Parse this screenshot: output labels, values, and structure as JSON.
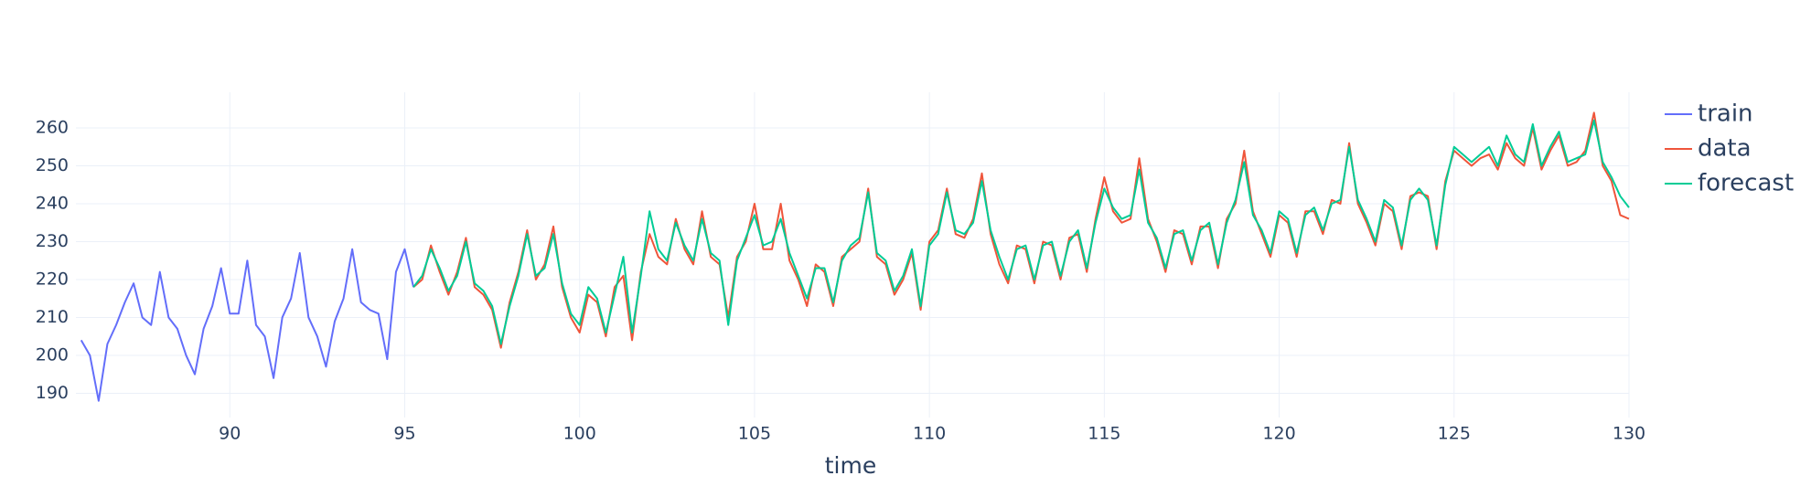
{
  "chart_data": {
    "type": "line",
    "x_label": "time",
    "xlim": [
      85.6,
      130
    ],
    "xticks": [
      90,
      95,
      100,
      105,
      110,
      115,
      120,
      125,
      130
    ],
    "ylim": [
      183.6,
      269.4
    ],
    "yticks": [
      190,
      200,
      210,
      220,
      230,
      240,
      250,
      260
    ],
    "grid": true,
    "legend": "right",
    "series": [
      {
        "name": "train",
        "color": "#636efa",
        "x": [
          85.75,
          86,
          86.25,
          86.5,
          86.75,
          87,
          87.25,
          87.5,
          87.75,
          88,
          88.25,
          88.5,
          88.75,
          89,
          89.25,
          89.5,
          89.75,
          90,
          90.25,
          90.5,
          90.75,
          91,
          91.25,
          91.5,
          91.75,
          92,
          92.25,
          92.5,
          92.75,
          93,
          93.25,
          93.5,
          93.75,
          94,
          94.25,
          94.5,
          94.75,
          95,
          95.25
        ],
        "values": [
          204,
          200,
          188,
          203,
          208,
          214,
          219,
          210,
          208,
          222,
          210,
          207,
          200,
          195,
          207,
          213,
          223,
          211,
          211,
          225,
          208,
          205,
          194,
          210,
          215,
          227,
          210,
          205,
          197,
          209,
          215,
          228,
          214,
          212,
          211,
          199,
          222,
          228,
          218
        ]
      },
      {
        "name": "data",
        "color": "#ef553b",
        "x": [
          95.25,
          95.5,
          95.75,
          96,
          96.25,
          96.5,
          96.75,
          97,
          97.25,
          97.5,
          97.75,
          98,
          98.25,
          98.5,
          98.75,
          99,
          99.25,
          99.5,
          99.75,
          100,
          100.25,
          100.5,
          100.75,
          101,
          101.25,
          101.5,
          101.75,
          102,
          102.25,
          102.5,
          102.75,
          103,
          103.25,
          103.5,
          103.75,
          104,
          104.25,
          104.5,
          104.75,
          105,
          105.25,
          105.5,
          105.75,
          106,
          106.25,
          106.5,
          106.75,
          107,
          107.25,
          107.5,
          107.75,
          108,
          108.25,
          108.5,
          108.75,
          109,
          109.25,
          109.5,
          109.75,
          110,
          110.25,
          110.5,
          110.75,
          111,
          111.25,
          111.5,
          111.75,
          112,
          112.25,
          112.5,
          112.75,
          113,
          113.25,
          113.5,
          113.75,
          114,
          114.25,
          114.5,
          114.75,
          115,
          115.25,
          115.5,
          115.75,
          116,
          116.25,
          116.5,
          116.75,
          117,
          117.25,
          117.5,
          117.75,
          118,
          118.25,
          118.5,
          118.75,
          119,
          119.25,
          119.5,
          119.75,
          120,
          120.25,
          120.5,
          120.75,
          121,
          121.25,
          121.5,
          121.75,
          122,
          122.25,
          122.5,
          122.75,
          123,
          123.25,
          123.5,
          123.75,
          124,
          124.25,
          124.5,
          124.75,
          125,
          125.25,
          125.5,
          125.75,
          126,
          126.25,
          126.5,
          126.75,
          127,
          127.25,
          127.5,
          127.75,
          128,
          128.25,
          128.5,
          128.75,
          129,
          129.25,
          129.5,
          129.75,
          130
        ],
        "values": [
          218,
          220,
          229,
          222,
          216,
          222,
          231,
          218,
          216,
          212,
          202,
          214,
          222,
          233,
          220,
          224,
          234,
          218,
          210,
          206,
          216,
          214,
          205,
          218,
          221,
          204,
          222,
          232,
          226,
          224,
          236,
          228,
          224,
          238,
          226,
          224,
          210,
          226,
          230,
          240,
          228,
          228,
          240,
          225,
          220,
          213,
          224,
          222,
          213,
          226,
          228,
          230,
          244,
          226,
          224,
          216,
          220,
          227,
          212,
          230,
          233,
          244,
          232,
          231,
          236,
          248,
          232,
          224,
          219,
          229,
          228,
          219,
          230,
          229,
          220,
          231,
          232,
          222,
          236,
          247,
          238,
          235,
          236,
          252,
          236,
          230,
          222,
          233,
          232,
          224,
          234,
          234,
          223,
          236,
          240,
          254,
          238,
          232,
          226,
          237,
          235,
          226,
          238,
          238,
          232,
          241,
          240,
          256,
          240,
          235,
          229,
          240,
          238,
          228,
          242,
          243,
          242,
          228,
          246,
          254,
          252,
          250,
          252,
          253,
          249,
          256,
          252,
          250,
          260,
          249,
          254,
          258,
          250,
          251,
          254,
          264,
          250,
          246,
          237,
          236
        ]
      },
      {
        "name": "forecast",
        "color": "#00cc96",
        "x": [
          95.25,
          95.5,
          95.75,
          96,
          96.25,
          96.5,
          96.75,
          97,
          97.25,
          97.5,
          97.75,
          98,
          98.25,
          98.5,
          98.75,
          99,
          99.25,
          99.5,
          99.75,
          100,
          100.25,
          100.5,
          100.75,
          101,
          101.25,
          101.5,
          101.75,
          102,
          102.25,
          102.5,
          102.75,
          103,
          103.25,
          103.5,
          103.75,
          104,
          104.25,
          104.5,
          104.75,
          105,
          105.25,
          105.5,
          105.75,
          106,
          106.25,
          106.5,
          106.75,
          107,
          107.25,
          107.5,
          107.75,
          108,
          108.25,
          108.5,
          108.75,
          109,
          109.25,
          109.5,
          109.75,
          110,
          110.25,
          110.5,
          110.75,
          111,
          111.25,
          111.5,
          111.75,
          112,
          112.25,
          112.5,
          112.75,
          113,
          113.25,
          113.5,
          113.75,
          114,
          114.25,
          114.5,
          114.75,
          115,
          115.25,
          115.5,
          115.75,
          116,
          116.25,
          116.5,
          116.75,
          117,
          117.25,
          117.5,
          117.75,
          118,
          118.25,
          118.5,
          118.75,
          119,
          119.25,
          119.5,
          119.75,
          120,
          120.25,
          120.5,
          120.75,
          121,
          121.25,
          121.5,
          121.75,
          122,
          122.25,
          122.5,
          122.75,
          123,
          123.25,
          123.5,
          123.75,
          124,
          124.25,
          124.5,
          124.75,
          125,
          125.25,
          125.5,
          125.75,
          126,
          126.25,
          126.5,
          126.75,
          127,
          127.25,
          127.5,
          127.75,
          128,
          128.25,
          128.5,
          128.75,
          129,
          129.25,
          129.5,
          129.75,
          130
        ],
        "values": [
          218,
          221,
          228,
          223,
          217,
          221,
          230,
          219,
          217,
          213,
          203,
          213,
          221,
          232,
          221,
          223,
          232,
          219,
          211,
          208,
          218,
          215,
          206,
          216,
          226,
          206,
          221,
          238,
          228,
          225,
          235,
          229,
          225,
          236,
          227,
          225,
          208,
          225,
          231,
          237,
          229,
          230,
          236,
          227,
          221,
          215,
          223,
          223,
          214,
          225,
          229,
          231,
          243,
          227,
          225,
          217,
          221,
          228,
          213,
          229,
          232,
          243,
          233,
          232,
          235,
          246,
          233,
          226,
          220,
          228,
          229,
          220,
          229,
          230,
          221,
          230,
          233,
          223,
          235,
          244,
          239,
          236,
          237,
          249,
          235,
          231,
          223,
          232,
          233,
          225,
          233,
          235,
          224,
          235,
          241,
          251,
          237,
          233,
          227,
          238,
          236,
          227,
          237,
          239,
          233,
          240,
          241,
          255,
          241,
          236,
          230,
          241,
          239,
          229,
          241,
          244,
          241,
          229,
          245,
          255,
          253,
          251,
          253,
          255,
          250,
          258,
          253,
          251,
          261,
          250,
          255,
          259,
          251,
          252,
          253,
          262,
          251,
          247,
          242,
          239
        ]
      }
    ]
  }
}
